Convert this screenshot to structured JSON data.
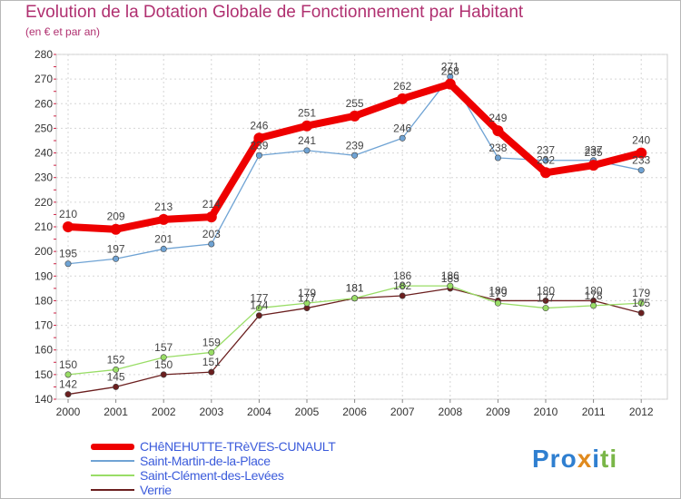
{
  "chart_data": {
    "type": "line",
    "title": "Evolution de la Dotation Globale de Fonctionnement par Habitant",
    "subtitle": "(en € et par an)",
    "categories": [
      "2000",
      "2001",
      "2002",
      "2003",
      "2004",
      "2005",
      "2006",
      "2007",
      "2008",
      "2009",
      "2010",
      "2011",
      "2012"
    ],
    "ylim": [
      140,
      280
    ],
    "yticks": [
      140,
      150,
      160,
      170,
      180,
      190,
      200,
      210,
      220,
      230,
      240,
      250,
      260,
      270,
      280
    ],
    "grid": true,
    "series": [
      {
        "name": "CHêNEHUTTE-TRèVES-CUNAULT",
        "color": "#ee0000",
        "values": [
          210,
          209,
          213,
          214,
          246,
          251,
          255,
          262,
          268,
          249,
          232,
          235,
          240
        ]
      },
      {
        "name": "Saint-Martin-de-la-Place",
        "color": "#6fa3d4",
        "values": [
          195,
          197,
          201,
          203,
          239,
          241,
          239,
          246,
          271,
          238,
          237,
          237,
          233
        ]
      },
      {
        "name": "Saint-Clément-des-Levées",
        "color": "#99dd66",
        "values": [
          150,
          152,
          157,
          159,
          177,
          179,
          181,
          186,
          186,
          179,
          177,
          178,
          179
        ]
      },
      {
        "name": "Verrie",
        "color": "#6b1f1f",
        "values": [
          142,
          145,
          150,
          151,
          174,
          177,
          181,
          182,
          185,
          180,
          180,
          180,
          175
        ]
      }
    ]
  },
  "logo": {
    "text": "Proxiti"
  }
}
